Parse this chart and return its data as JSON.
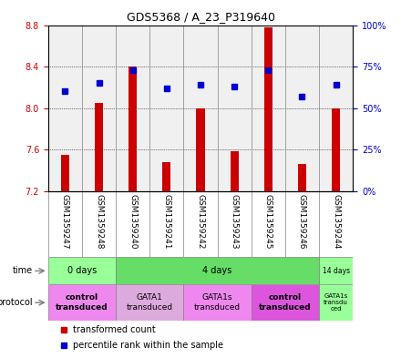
{
  "title": "GDS5368 / A_23_P319640",
  "samples": [
    "GSM1359247",
    "GSM1359248",
    "GSM1359240",
    "GSM1359241",
    "GSM1359242",
    "GSM1359243",
    "GSM1359245",
    "GSM1359246",
    "GSM1359244"
  ],
  "transformed_count": [
    7.55,
    8.05,
    8.4,
    7.48,
    8.0,
    7.58,
    8.78,
    7.46,
    8.0
  ],
  "percentile_rank": [
    60,
    65,
    73,
    62,
    64,
    63,
    73,
    57,
    64
  ],
  "ylim": [
    7.2,
    8.8
  ],
  "yticks": [
    7.2,
    7.6,
    8.0,
    8.4,
    8.8
  ],
  "right_yticks": [
    0,
    25,
    50,
    75,
    100
  ],
  "right_ylim": [
    0,
    100
  ],
  "bar_color": "#CC0000",
  "dot_color": "#0000CC",
  "bar_bottom": 7.2,
  "time_groups": [
    {
      "label": "0 days",
      "start": 0,
      "end": 2,
      "color": "#99FF99"
    },
    {
      "label": "4 days",
      "start": 2,
      "end": 8,
      "color": "#66DD66"
    },
    {
      "label": "14 days",
      "start": 8,
      "end": 9,
      "color": "#99FF99"
    }
  ],
  "protocol_groups": [
    {
      "label": "control\ntransduced",
      "start": 0,
      "end": 2,
      "color": "#EE88EE",
      "bold": true
    },
    {
      "label": "GATA1\ntransduced",
      "start": 2,
      "end": 4,
      "color": "#DDAADD",
      "bold": false
    },
    {
      "label": "GATA1s\ntransduced",
      "start": 4,
      "end": 6,
      "color": "#EE88EE",
      "bold": false
    },
    {
      "label": "control\ntransduced",
      "start": 6,
      "end": 8,
      "color": "#DD55DD",
      "bold": true
    },
    {
      "label": "GATA1s\ntransdu\nced",
      "start": 8,
      "end": 9,
      "color": "#99FF99",
      "bold": false
    }
  ],
  "bg_color": "#FFFFFF",
  "grid_color": "#000000",
  "left_tick_color": "#CC0000",
  "right_tick_color": "#0000CC"
}
